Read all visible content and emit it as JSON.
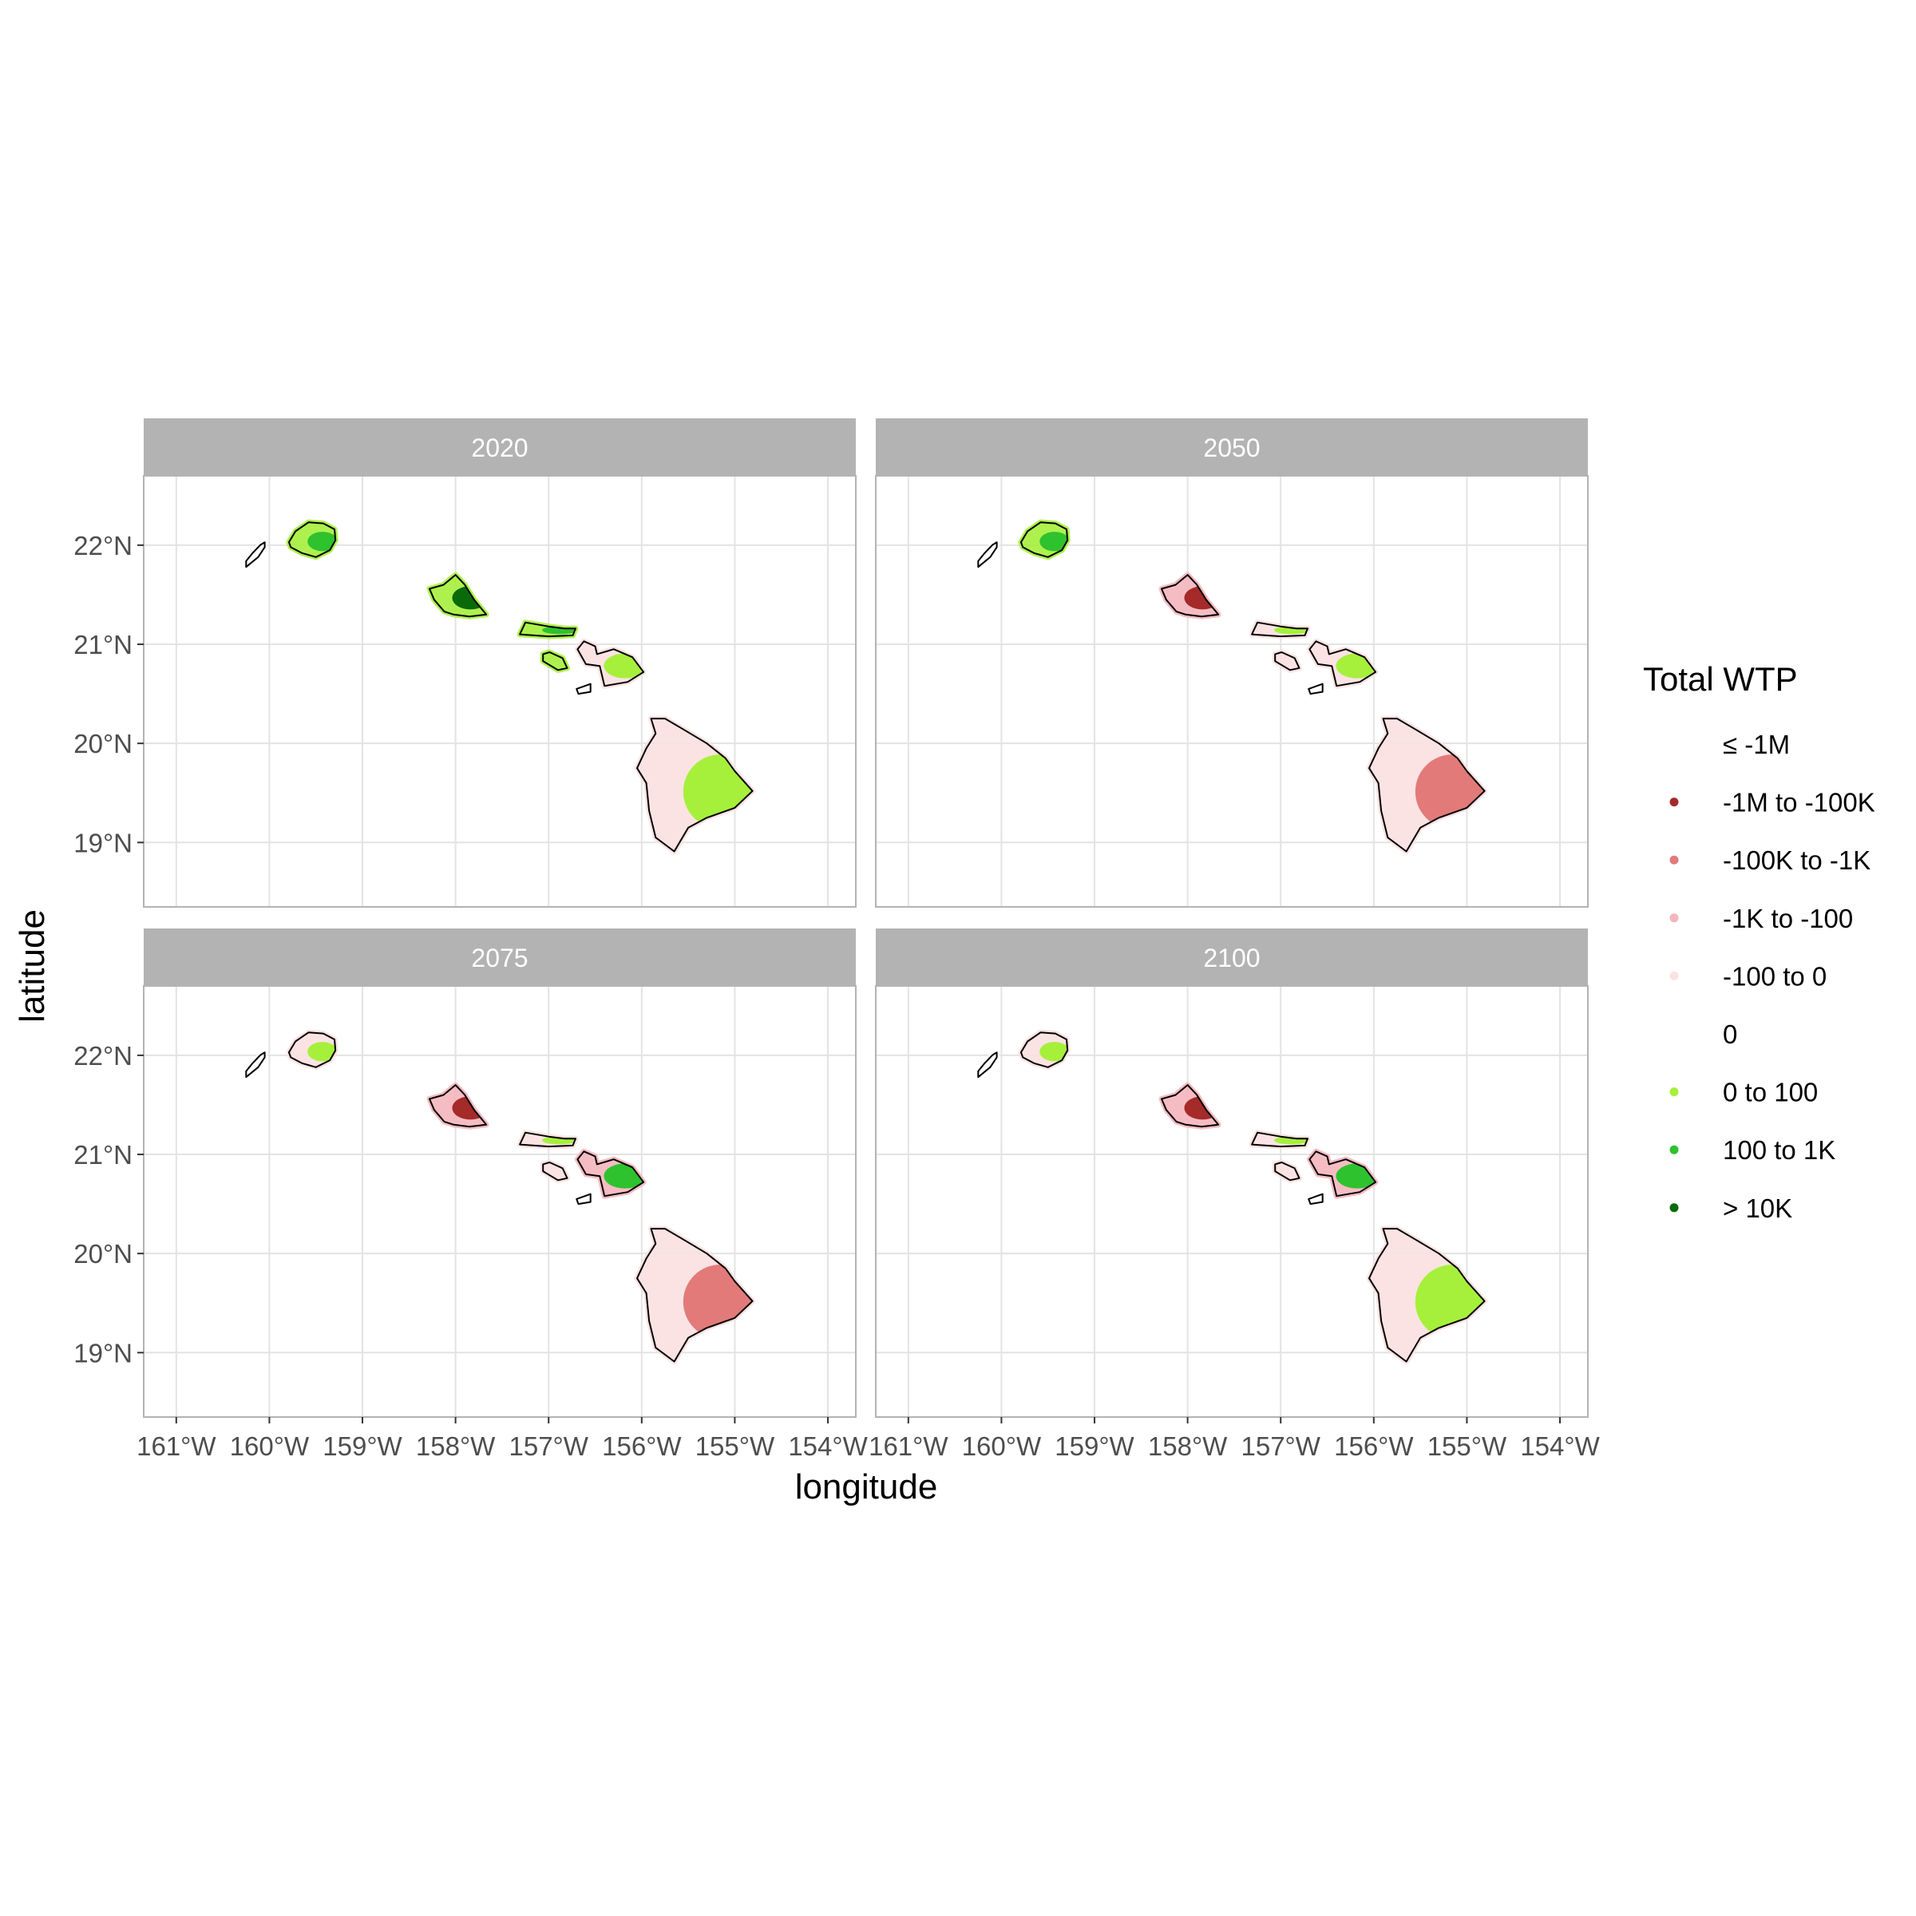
{
  "chart_data": {
    "type": "map",
    "facet_by": "year",
    "xlabel": "longitude",
    "ylabel": "latitude",
    "xlim": [
      -161.35,
      -153.7
    ],
    "ylim": [
      18.35,
      22.7
    ],
    "x_ticks": [
      -161,
      -160,
      -159,
      -158,
      -157,
      -156,
      -155,
      -154
    ],
    "x_tick_labels": [
      "161°W",
      "160°W",
      "159°W",
      "158°W",
      "157°W",
      "156°W",
      "155°W",
      "154°W"
    ],
    "y_ticks": [
      19,
      20,
      21,
      22
    ],
    "y_tick_labels": [
      "19°N",
      "20°N",
      "21°N",
      "22°N"
    ],
    "grid": true,
    "legend": {
      "title": "Total WTP",
      "placement": "right",
      "entries": [
        {
          "label": "≤ -1M",
          "color": "#ffffff"
        },
        {
          "label": "-1M to -100K",
          "color": "#a52a2a"
        },
        {
          "label": "-100K to -1K",
          "color": "#e37a7a"
        },
        {
          "label": "-1K to -100",
          "color": "#f4b6bd"
        },
        {
          "label": "-100 to 0",
          "color": "#fbe1e1"
        },
        {
          "label": "0",
          "color": "#ffffff"
        },
        {
          "label": "0 to 100",
          "color": "#a6f03c"
        },
        {
          "label": "100 to 1K",
          "color": "#2ec22e"
        },
        {
          "label": "> 10K",
          "color": "#0a6a0a"
        }
      ]
    },
    "islands": [
      {
        "name": "Niihau",
        "outline": [
          [
            -160.25,
            21.78
          ],
          [
            -160.12,
            21.88
          ],
          [
            -160.05,
            21.98
          ],
          [
            -160.05,
            22.03
          ],
          [
            -160.1,
            22.0
          ],
          [
            -160.18,
            21.92
          ],
          [
            -160.25,
            21.84
          ],
          [
            -160.25,
            21.78
          ]
        ]
      },
      {
        "name": "Kauai",
        "outline": [
          [
            -159.79,
            22.03
          ],
          [
            -159.72,
            22.14
          ],
          [
            -159.58,
            22.23
          ],
          [
            -159.42,
            22.22
          ],
          [
            -159.3,
            22.16
          ],
          [
            -159.29,
            22.05
          ],
          [
            -159.35,
            21.95
          ],
          [
            -159.5,
            21.88
          ],
          [
            -159.65,
            21.92
          ],
          [
            -159.77,
            21.98
          ],
          [
            -159.79,
            22.03
          ]
        ]
      },
      {
        "name": "Oahu",
        "outline": [
          [
            -158.28,
            21.56
          ],
          [
            -158.13,
            21.6
          ],
          [
            -158.0,
            21.7
          ],
          [
            -157.9,
            21.6
          ],
          [
            -157.8,
            21.45
          ],
          [
            -157.67,
            21.3
          ],
          [
            -157.85,
            21.28
          ],
          [
            -158.02,
            21.3
          ],
          [
            -158.12,
            21.33
          ],
          [
            -158.23,
            21.45
          ],
          [
            -158.28,
            21.56
          ]
        ]
      },
      {
        "name": "Molokai",
        "outline": [
          [
            -157.31,
            21.1
          ],
          [
            -157.25,
            21.22
          ],
          [
            -157.0,
            21.18
          ],
          [
            -156.83,
            21.16
          ],
          [
            -156.71,
            21.16
          ],
          [
            -156.74,
            21.09
          ],
          [
            -157.0,
            21.08
          ],
          [
            -157.31,
            21.1
          ]
        ]
      },
      {
        "name": "Lanai",
        "outline": [
          [
            -157.06,
            20.9
          ],
          [
            -156.99,
            20.92
          ],
          [
            -156.85,
            20.86
          ],
          [
            -156.8,
            20.76
          ],
          [
            -156.9,
            20.74
          ],
          [
            -157.06,
            20.83
          ],
          [
            -157.06,
            20.9
          ]
        ]
      },
      {
        "name": "Maui",
        "outline": [
          [
            -156.69,
            20.95
          ],
          [
            -156.62,
            21.03
          ],
          [
            -156.5,
            20.98
          ],
          [
            -156.48,
            20.9
          ],
          [
            -156.3,
            20.95
          ],
          [
            -156.1,
            20.87
          ],
          [
            -155.98,
            20.72
          ],
          [
            -156.15,
            20.62
          ],
          [
            -156.4,
            20.58
          ],
          [
            -156.45,
            20.78
          ],
          [
            -156.6,
            20.8
          ],
          [
            -156.69,
            20.95
          ]
        ]
      },
      {
        "name": "Kahoolawe",
        "outline": [
          [
            -156.7,
            20.55
          ],
          [
            -156.55,
            20.6
          ],
          [
            -156.55,
            20.52
          ],
          [
            -156.68,
            20.5
          ],
          [
            -156.7,
            20.55
          ]
        ]
      },
      {
        "name": "Hawaii",
        "outline": [
          [
            -155.9,
            20.25
          ],
          [
            -155.75,
            20.25
          ],
          [
            -155.55,
            20.14
          ],
          [
            -155.3,
            20.0
          ],
          [
            -155.1,
            19.85
          ],
          [
            -155.0,
            19.72
          ],
          [
            -154.81,
            19.52
          ],
          [
            -155.0,
            19.35
          ],
          [
            -155.3,
            19.25
          ],
          [
            -155.5,
            19.15
          ],
          [
            -155.65,
            18.91
          ],
          [
            -155.85,
            19.05
          ],
          [
            -155.92,
            19.32
          ],
          [
            -155.95,
            19.6
          ],
          [
            -156.05,
            19.75
          ],
          [
            -155.95,
            19.95
          ],
          [
            -155.85,
            20.1
          ],
          [
            -155.9,
            20.25
          ]
        ]
      },
      {
        "name": "Kaula",
        "outline": [
          [
            -160.54,
            21.66
          ],
          [
            -160.53,
            21.66
          ],
          [
            -160.53,
            21.65
          ],
          [
            -160.54,
            21.65
          ],
          [
            -160.54,
            21.66
          ]
        ]
      }
    ],
    "panels": [
      {
        "year": "2020",
        "regions": [
          {
            "island": "Niihau",
            "category": "0"
          },
          {
            "island": "Kauai",
            "category": "0 to 100",
            "secondary": "100 to 1K"
          },
          {
            "island": "Oahu",
            "category": "0 to 100",
            "secondary": "> 10K"
          },
          {
            "island": "Molokai",
            "category": "0 to 100",
            "secondary": "100 to 1K"
          },
          {
            "island": "Lanai",
            "category": "0 to 100"
          },
          {
            "island": "Maui",
            "category": "-100 to 0",
            "secondary": "0 to 100"
          },
          {
            "island": "Kahoolawe",
            "category": "0"
          },
          {
            "island": "Hawaii",
            "category": "-100 to 0",
            "secondary": "0 to 100"
          }
        ]
      },
      {
        "year": "2050",
        "regions": [
          {
            "island": "Niihau",
            "category": "0"
          },
          {
            "island": "Kauai",
            "category": "0 to 100",
            "secondary": "100 to 1K"
          },
          {
            "island": "Oahu",
            "category": "-1K to -100",
            "secondary": "-1M to -100K"
          },
          {
            "island": "Molokai",
            "category": "-100 to 0",
            "secondary": "0 to 100"
          },
          {
            "island": "Lanai",
            "category": "-100 to 0"
          },
          {
            "island": "Maui",
            "category": "-100 to 0",
            "secondary": "0 to 100"
          },
          {
            "island": "Kahoolawe",
            "category": "0"
          },
          {
            "island": "Hawaii",
            "category": "-100 to 0",
            "secondary": "-100K to -1K"
          }
        ]
      },
      {
        "year": "2075",
        "regions": [
          {
            "island": "Niihau",
            "category": "0"
          },
          {
            "island": "Kauai",
            "category": "-100 to 0",
            "secondary": "0 to 100"
          },
          {
            "island": "Oahu",
            "category": "-1K to -100",
            "secondary": "-1M to -100K"
          },
          {
            "island": "Molokai",
            "category": "-100 to 0",
            "secondary": "0 to 100"
          },
          {
            "island": "Lanai",
            "category": "-100 to 0"
          },
          {
            "island": "Maui",
            "category": "-1K to -100",
            "secondary": "100 to 1K"
          },
          {
            "island": "Kahoolawe",
            "category": "0"
          },
          {
            "island": "Hawaii",
            "category": "-100 to 0",
            "secondary": "-100K to -1K"
          }
        ]
      },
      {
        "year": "2100",
        "regions": [
          {
            "island": "Niihau",
            "category": "0"
          },
          {
            "island": "Kauai",
            "category": "-100 to 0",
            "secondary": "0 to 100"
          },
          {
            "island": "Oahu",
            "category": "-1K to -100",
            "secondary": "-1M to -100K"
          },
          {
            "island": "Molokai",
            "category": "-100 to 0",
            "secondary": "0 to 100"
          },
          {
            "island": "Lanai",
            "category": "-100 to 0"
          },
          {
            "island": "Maui",
            "category": "-1K to -100",
            "secondary": "100 to 1K"
          },
          {
            "island": "Kahoolawe",
            "category": "0"
          },
          {
            "island": "Hawaii",
            "category": "-100 to 0",
            "secondary": "0 to 100"
          }
        ]
      }
    ]
  }
}
